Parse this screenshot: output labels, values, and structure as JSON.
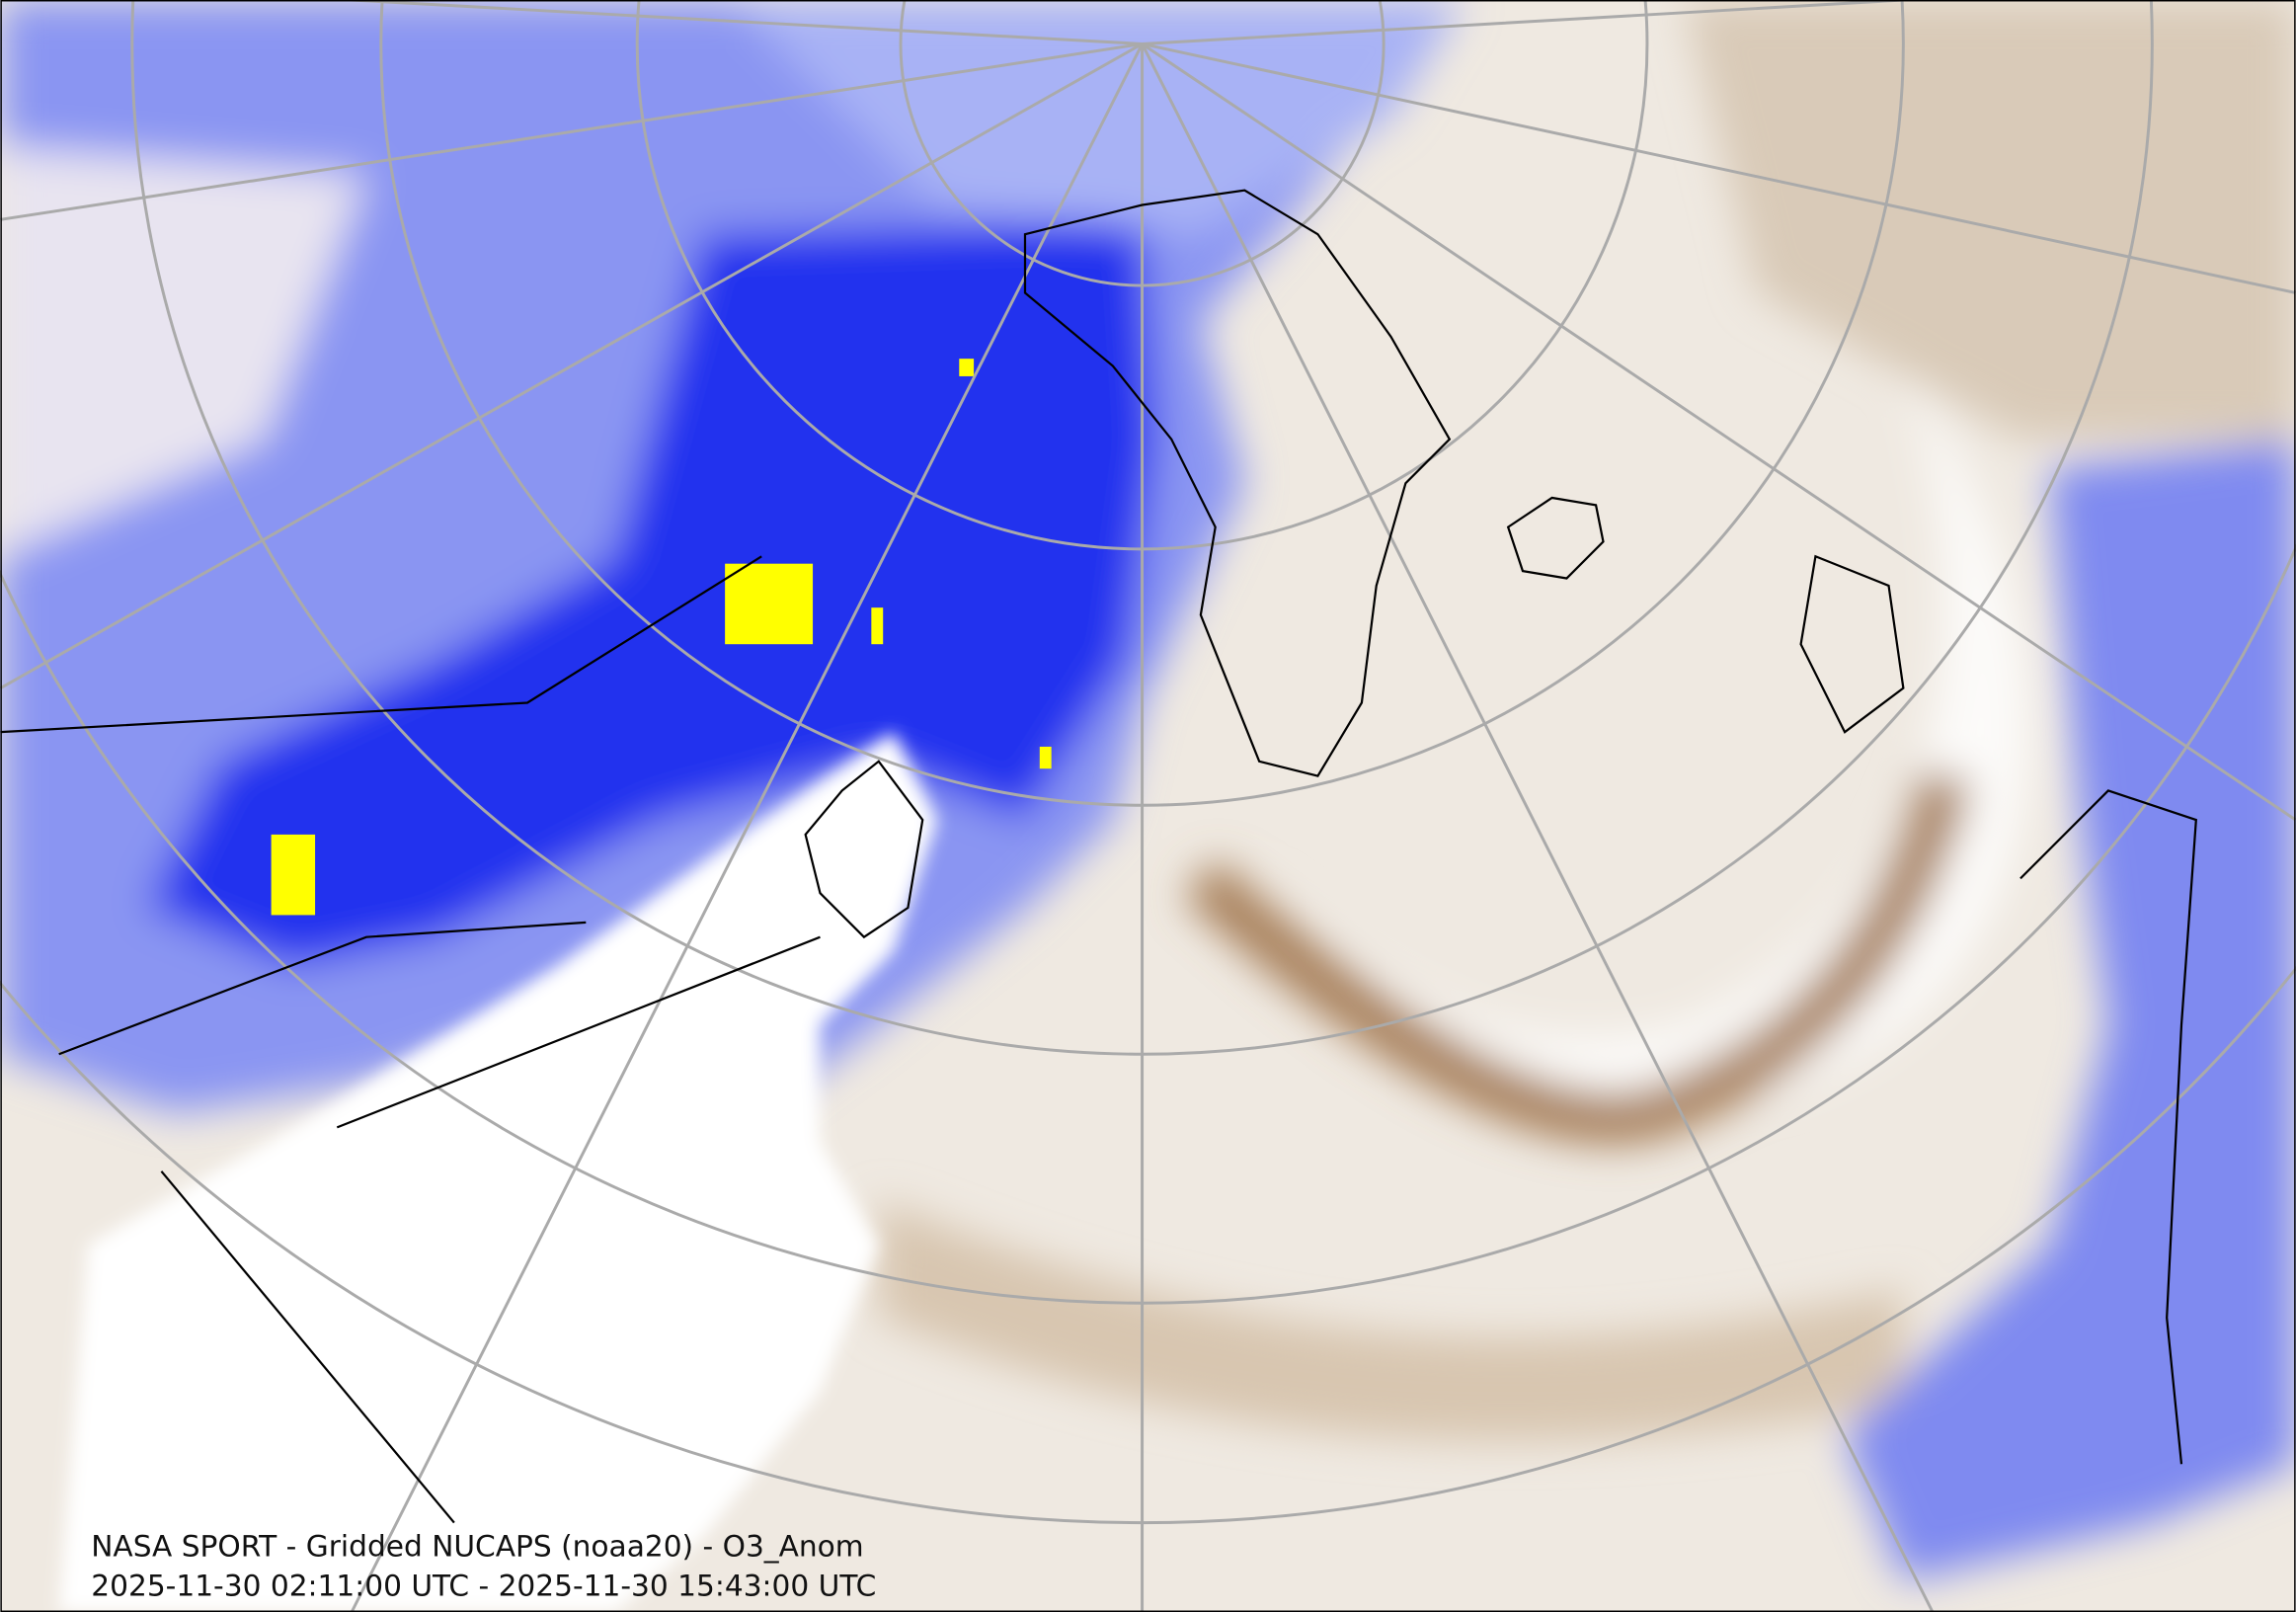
{
  "caption": {
    "title": "NASA SPORT - Gridded NUCAPS (noaa20) - O3_Anom",
    "time_range": "2025-11-30 02:11:00 UTC - 2025-11-30 15:43:00 UTC"
  }
}
